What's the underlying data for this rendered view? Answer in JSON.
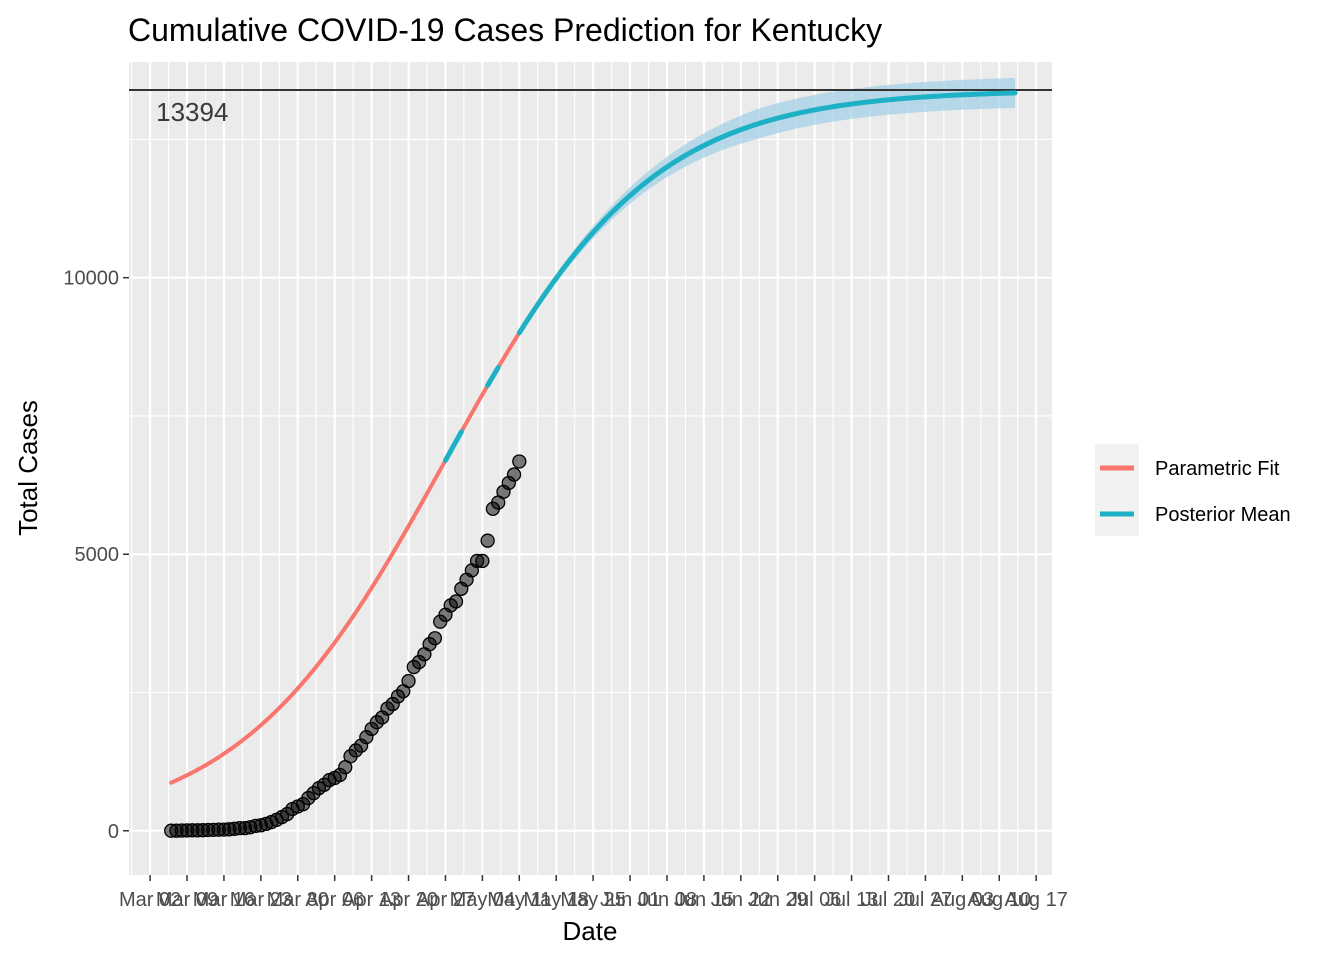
{
  "chart_data": {
    "type": "line",
    "title": "Cumulative COVID-19 Cases Prediction for Kentucky",
    "xlabel": "Date",
    "ylabel": "Total Cases",
    "x_axis": {
      "type": "date",
      "range": [
        "2020-02-27",
        "2020-08-20"
      ],
      "major_breaks": [
        "2020-03-02",
        "2020-03-09",
        "2020-03-16",
        "2020-03-23",
        "2020-03-30",
        "2020-04-06",
        "2020-04-13",
        "2020-04-20",
        "2020-04-27",
        "2020-05-04",
        "2020-05-11",
        "2020-05-18",
        "2020-05-25",
        "2020-06-01",
        "2020-06-08",
        "2020-06-15",
        "2020-06-22",
        "2020-06-29",
        "2020-07-06",
        "2020-07-13",
        "2020-07-20",
        "2020-07-27",
        "2020-08-03",
        "2020-08-10",
        "2020-08-17"
      ],
      "tick_labels": [
        "Mar 02",
        "Mar 09",
        "Mar 16",
        "Mar 23",
        "Mar 30",
        "Apr 06",
        "Apr 13",
        "Apr 20",
        "Apr 27",
        "May 04",
        "May 11",
        "May 18",
        "May 25",
        "Jun 01",
        "Jun 08",
        "Jun 15",
        "Jun 22",
        "Jun 29",
        "Jul 06",
        "Jul 13",
        "Jul 20",
        "Jul 27",
        "Aug 03",
        "Aug 10",
        "Aug 17"
      ]
    },
    "y_axis": {
      "range": [
        -800,
        13900
      ],
      "ticks": [
        0,
        5000,
        10000
      ],
      "tick_labels": [
        "0",
        "5000",
        "10000"
      ],
      "minor_ticks": [
        2500,
        7500,
        12500
      ]
    },
    "grid": true,
    "hline": {
      "value": 13394,
      "label": "13394",
      "label_date": "2020-03-10",
      "label_value": 13000
    },
    "legend": {
      "placement": "right",
      "entries": [
        {
          "name": "Parametric Fit",
          "color": "#F8766D"
        },
        {
          "name": "Posterior Mean",
          "color": "#1EB0C4"
        }
      ]
    },
    "logistic_model": {
      "capacity": 13394,
      "midpoint": "2020-04-27",
      "scale_days": 19.5
    },
    "parametric_fit": {
      "color": "#F8766D",
      "start": "2020-03-06",
      "end": "2020-05-11"
    },
    "posterior_mean": {
      "color": "#1EB0C4",
      "start": "2020-05-11",
      "end": "2020-08-13",
      "band_color": "#9ECFE5"
    },
    "observed_points": {
      "dates": [
        "2020-03-06",
        "2020-03-07",
        "2020-03-08",
        "2020-03-09",
        "2020-03-10",
        "2020-03-11",
        "2020-03-12",
        "2020-03-13",
        "2020-03-14",
        "2020-03-15",
        "2020-03-16",
        "2020-03-17",
        "2020-03-18",
        "2020-03-19",
        "2020-03-20",
        "2020-03-21",
        "2020-03-22",
        "2020-03-23",
        "2020-03-24",
        "2020-03-25",
        "2020-03-26",
        "2020-03-27",
        "2020-03-28",
        "2020-03-29",
        "2020-03-30",
        "2020-03-31",
        "2020-04-01",
        "2020-04-02",
        "2020-04-03",
        "2020-04-04",
        "2020-04-05",
        "2020-04-06",
        "2020-04-07",
        "2020-04-08",
        "2020-04-09",
        "2020-04-10",
        "2020-04-11",
        "2020-04-12",
        "2020-04-13",
        "2020-04-14",
        "2020-04-15",
        "2020-04-16",
        "2020-04-17",
        "2020-04-18",
        "2020-04-19",
        "2020-04-20",
        "2020-04-21",
        "2020-04-22",
        "2020-04-23",
        "2020-04-24",
        "2020-04-25",
        "2020-04-26",
        "2020-04-27",
        "2020-04-28",
        "2020-04-29",
        "2020-04-30",
        "2020-05-01",
        "2020-05-02",
        "2020-05-03",
        "2020-05-04",
        "2020-05-05",
        "2020-05-06",
        "2020-05-07",
        "2020-05-08",
        "2020-05-09",
        "2020-05-10",
        "2020-05-11"
      ],
      "values": [
        1,
        1,
        4,
        6,
        8,
        8,
        10,
        14,
        16,
        20,
        21,
        26,
        35,
        47,
        48,
        63,
        88,
        99,
        124,
        157,
        198,
        248,
        302,
        394,
        439,
        480,
        591,
        680,
        770,
        831,
        917,
        955,
        1008,
        1149,
        1346,
        1452,
        1539,
        1693,
        1840,
        1963,
        2048,
        2210,
        2291,
        2429,
        2522,
        2707,
        2960,
        3050,
        3192,
        3373,
        3481,
        3779,
        3905,
        4074,
        4146,
        4375,
        4539,
        4708,
        4879,
        4879,
        5245,
        5822,
        5934,
        6128,
        6288,
        6440,
        6677
      ]
    }
  }
}
